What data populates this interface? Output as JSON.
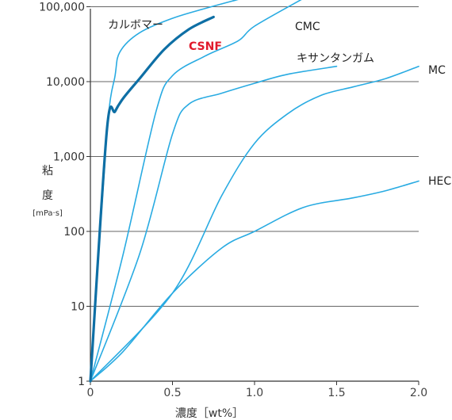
{
  "chart_data": {
    "type": "line",
    "title": "",
    "xlabel": "濃度［wt%］",
    "ylabel_chars": [
      "粘",
      "度"
    ],
    "ylabel_unit": "[mPa·s]",
    "y_scale": "log",
    "xlim": [
      0,
      2.0
    ],
    "ylim": [
      1,
      150000
    ],
    "x_ticks": [
      0,
      0.5,
      1.0,
      1.5,
      2.0
    ],
    "x_tick_labels": [
      "0",
      "0.5",
      "1.0",
      "1.5",
      "2.0"
    ],
    "y_ticks": [
      1,
      10,
      100,
      1000,
      10000,
      100000
    ],
    "y_tick_labels": [
      "1",
      "10",
      "100",
      "1,000",
      "10,000",
      "100,000"
    ],
    "grid": "horizontal",
    "colors": {
      "series": "#29abe2",
      "highlight": "#0e6fa5",
      "highlight_label": "#e0192b",
      "grid": "#666666",
      "axis": "#333333"
    },
    "series": [
      {
        "name": "カルボマー",
        "highlight": false,
        "x": [
          0,
          0.1,
          0.15,
          0.18,
          0.3,
          0.5,
          0.7,
          0.9
        ],
        "y": [
          1,
          2000,
          12000,
          25000,
          45000,
          70000,
          95000,
          125000
        ]
      },
      {
        "name": "CSNF",
        "highlight": true,
        "x": [
          0,
          0.1,
          0.15,
          0.2,
          0.3,
          0.45,
          0.6,
          0.75
        ],
        "y": [
          1,
          2200,
          4000,
          6000,
          11000,
          27000,
          50000,
          73000
        ]
      },
      {
        "name": "CMC",
        "highlight": false,
        "x": [
          0,
          0.2,
          0.4,
          0.5,
          0.7,
          0.9,
          1.0,
          1.3
        ],
        "y": [
          1,
          50,
          4000,
          12000,
          22000,
          35000,
          55000,
          130000
        ]
      },
      {
        "name": "キサンタンガム",
        "highlight": false,
        "x": [
          0,
          0.3,
          0.5,
          0.6,
          0.8,
          1.0,
          1.2,
          1.5
        ],
        "y": [
          1,
          50,
          2000,
          5000,
          7000,
          9500,
          12500,
          16000
        ]
      },
      {
        "name": "MC",
        "highlight": false,
        "x": [
          0,
          0.5,
          0.8,
          1.0,
          1.2,
          1.4,
          1.6,
          1.8,
          2.0
        ],
        "y": [
          1,
          15,
          300,
          1500,
          3700,
          6500,
          8500,
          11000,
          16000
        ]
      },
      {
        "name": "HEC",
        "highlight": false,
        "x": [
          0,
          0.2,
          0.5,
          0.8,
          1.0,
          1.3,
          1.6,
          1.8,
          2.0
        ],
        "y": [
          1,
          2.5,
          15,
          60,
          100,
          210,
          280,
          350,
          470
        ]
      }
    ]
  }
}
